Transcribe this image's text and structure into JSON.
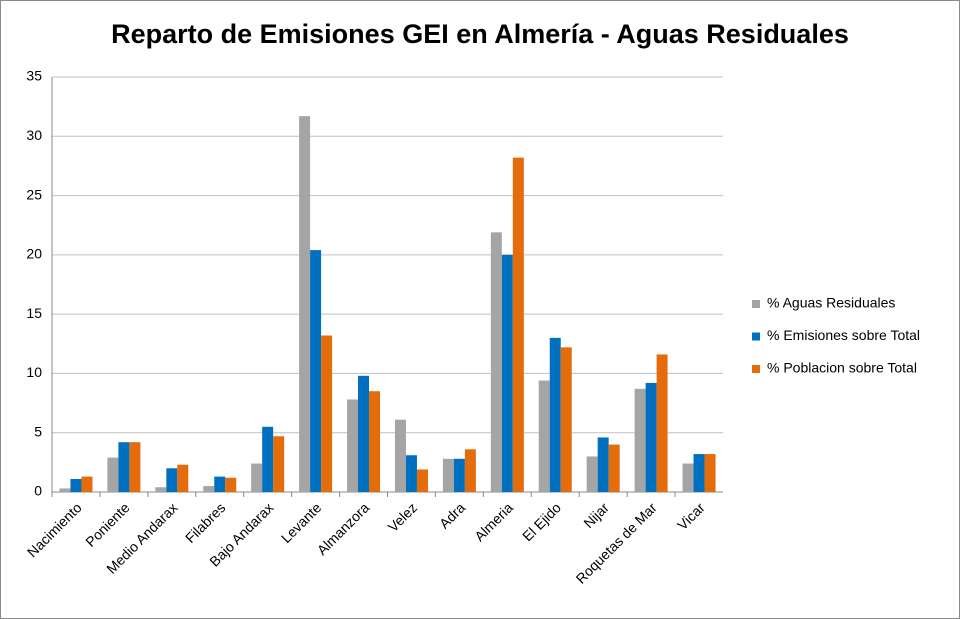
{
  "chart_data": {
    "type": "bar",
    "title": "Reparto de Emisiones GEI en Almería - Aguas Residuales",
    "categories": [
      "Nacimiento",
      "Poniente",
      "Medio Andarax",
      "Filabres",
      "Bajo Andarax",
      "Levante",
      "Almanzora",
      "Velez",
      "Adra",
      "Almeria",
      "El Ejido",
      "Nijar",
      "Roquetas de Mar",
      "Vicar"
    ],
    "series": [
      {
        "name": "% Aguas Residuales",
        "color": "#a5a5a5",
        "values": [
          0.3,
          2.9,
          0.4,
          0.5,
          2.4,
          31.7,
          7.8,
          6.1,
          2.8,
          21.9,
          9.4,
          3.0,
          8.7,
          2.4
        ]
      },
      {
        "name": "% Emisiones sobre Total",
        "color": "#0070c0",
        "values": [
          1.1,
          4.2,
          2.0,
          1.3,
          5.5,
          20.4,
          9.8,
          3.1,
          2.8,
          20.0,
          13.0,
          4.6,
          9.2,
          3.2
        ]
      },
      {
        "name": "% Poblacion sobre Total",
        "color": "#e46c0a",
        "values": [
          1.3,
          4.2,
          2.3,
          1.2,
          4.7,
          13.2,
          8.5,
          1.9,
          3.6,
          28.2,
          12.2,
          4.0,
          11.6,
          3.2
        ]
      }
    ],
    "ylim": [
      0,
      35
    ],
    "yticks": [
      0,
      5,
      10,
      15,
      20,
      25,
      30,
      35
    ],
    "grid": true,
    "legend": "right"
  }
}
